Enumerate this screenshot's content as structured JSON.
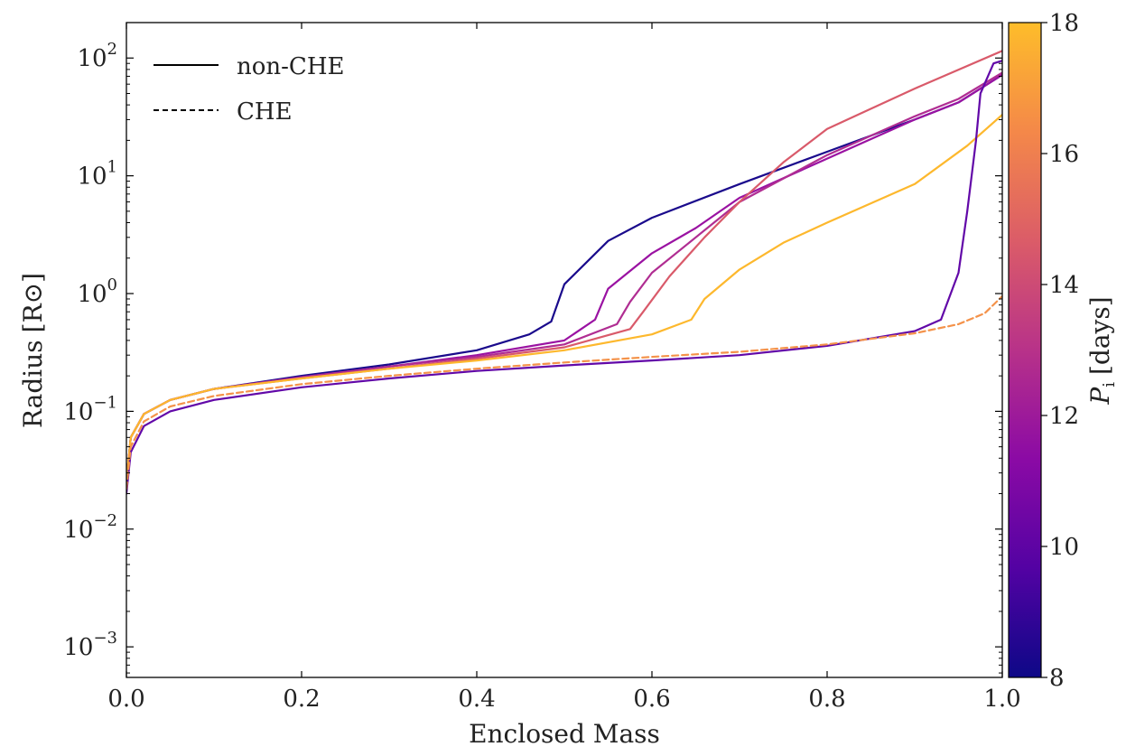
{
  "chart_data": {
    "type": "line",
    "xlabel": "Enclosed Mass",
    "ylabel": "Radius",
    "ylabel_unit": "[R⊙]",
    "xlim": [
      0.0,
      1.0
    ],
    "ylim": [
      0.00055,
      200
    ],
    "yscale": "log",
    "grid": false,
    "x_ticks": [
      0.0,
      0.2,
      0.4,
      0.6,
      0.8,
      1.0
    ],
    "x_tick_labels": [
      "0.0",
      "0.2",
      "0.4",
      "0.6",
      "0.8",
      "1.0"
    ],
    "y_ticks": [
      {
        "value": 0.001,
        "base": "10",
        "exp": "−3"
      },
      {
        "value": 0.01,
        "base": "10",
        "exp": "−2"
      },
      {
        "value": 0.1,
        "base": "10",
        "exp": "−1"
      },
      {
        "value": 1,
        "base": "10",
        "exp": "0"
      },
      {
        "value": 10,
        "base": "10",
        "exp": "1"
      },
      {
        "value": 100,
        "base": "10",
        "exp": "2"
      }
    ],
    "legend": {
      "placement": "top-left",
      "entries": [
        {
          "label": "non-CHE",
          "style": "solid"
        },
        {
          "label": "CHE",
          "style": "dashed"
        }
      ]
    },
    "colorbar": {
      "label_symbol": "P",
      "label_subscript": "i",
      "label_unit": "[days]",
      "range": [
        8,
        18
      ],
      "ticks": [
        8,
        10,
        12,
        14,
        16,
        18
      ],
      "colormap_stops": [
        "#0d0887",
        "#5302a3",
        "#8b0aa5",
        "#b83289",
        "#db5c68",
        "#f48849",
        "#febd2a"
      ]
    },
    "series": [
      {
        "style": "solid",
        "color": "#1a0a8c",
        "x": [
          0.0,
          0.005,
          0.02,
          0.05,
          0.1,
          0.2,
          0.3,
          0.4,
          0.46,
          0.485,
          0.5,
          0.55,
          0.6,
          0.7,
          0.8,
          0.9,
          0.95,
          1.0
        ],
        "y": [
          0.025,
          0.06,
          0.095,
          0.125,
          0.155,
          0.2,
          0.25,
          0.33,
          0.45,
          0.58,
          1.2,
          2.8,
          4.4,
          8.5,
          16,
          30,
          42,
          72
        ]
      },
      {
        "style": "solid",
        "color": "#9a12a2",
        "x": [
          0.0,
          0.005,
          0.02,
          0.05,
          0.1,
          0.2,
          0.3,
          0.4,
          0.5,
          0.535,
          0.55,
          0.6,
          0.65,
          0.7,
          0.8,
          0.9,
          0.95,
          1.0
        ],
        "y": [
          0.025,
          0.06,
          0.095,
          0.125,
          0.155,
          0.195,
          0.24,
          0.3,
          0.4,
          0.6,
          1.1,
          2.2,
          3.6,
          6.5,
          14,
          30,
          42,
          72
        ]
      },
      {
        "style": "solid",
        "color": "#b02d92",
        "x": [
          0.0,
          0.005,
          0.02,
          0.05,
          0.1,
          0.2,
          0.3,
          0.4,
          0.5,
          0.56,
          0.575,
          0.6,
          0.65,
          0.7,
          0.8,
          0.9,
          0.95,
          1.0
        ],
        "y": [
          0.025,
          0.06,
          0.095,
          0.125,
          0.155,
          0.195,
          0.24,
          0.29,
          0.37,
          0.55,
          0.85,
          1.5,
          3.0,
          6.0,
          15,
          32,
          45,
          75
        ]
      },
      {
        "style": "solid",
        "color": "#d95a6a",
        "x": [
          0.0,
          0.005,
          0.02,
          0.05,
          0.1,
          0.2,
          0.3,
          0.4,
          0.5,
          0.575,
          0.59,
          0.62,
          0.66,
          0.7,
          0.75,
          0.8,
          0.9,
          1.0
        ],
        "y": [
          0.025,
          0.06,
          0.095,
          0.125,
          0.155,
          0.19,
          0.23,
          0.28,
          0.35,
          0.5,
          0.7,
          1.4,
          3.0,
          6.0,
          13,
          25,
          55,
          115
        ]
      },
      {
        "style": "solid",
        "color": "#fdb82d",
        "x": [
          0.0,
          0.005,
          0.02,
          0.05,
          0.1,
          0.2,
          0.3,
          0.4,
          0.5,
          0.6,
          0.645,
          0.66,
          0.7,
          0.75,
          0.8,
          0.9,
          0.96,
          1.0
        ],
        "y": [
          0.025,
          0.06,
          0.095,
          0.125,
          0.155,
          0.19,
          0.23,
          0.27,
          0.33,
          0.45,
          0.6,
          0.9,
          1.6,
          2.7,
          4.0,
          8.5,
          18,
          33
        ]
      },
      {
        "style": "solid",
        "color": "#6208a8",
        "x": [
          0.0,
          0.005,
          0.02,
          0.05,
          0.1,
          0.2,
          0.3,
          0.4,
          0.5,
          0.6,
          0.7,
          0.8,
          0.9,
          0.93,
          0.95,
          0.96,
          0.97,
          0.975,
          0.99,
          1.0
        ],
        "y": [
          0.02,
          0.045,
          0.075,
          0.1,
          0.125,
          0.16,
          0.19,
          0.22,
          0.245,
          0.27,
          0.3,
          0.36,
          0.48,
          0.6,
          1.5,
          5,
          20,
          50,
          90,
          95
        ]
      },
      {
        "style": "dashed",
        "color": "#f4924a",
        "x": [
          0.0,
          0.005,
          0.02,
          0.05,
          0.1,
          0.2,
          0.3,
          0.4,
          0.5,
          0.6,
          0.7,
          0.8,
          0.9,
          0.95,
          0.98,
          1.0
        ],
        "y": [
          0.022,
          0.05,
          0.082,
          0.11,
          0.135,
          0.17,
          0.2,
          0.23,
          0.26,
          0.29,
          0.32,
          0.37,
          0.46,
          0.55,
          0.68,
          0.95
        ]
      }
    ]
  }
}
